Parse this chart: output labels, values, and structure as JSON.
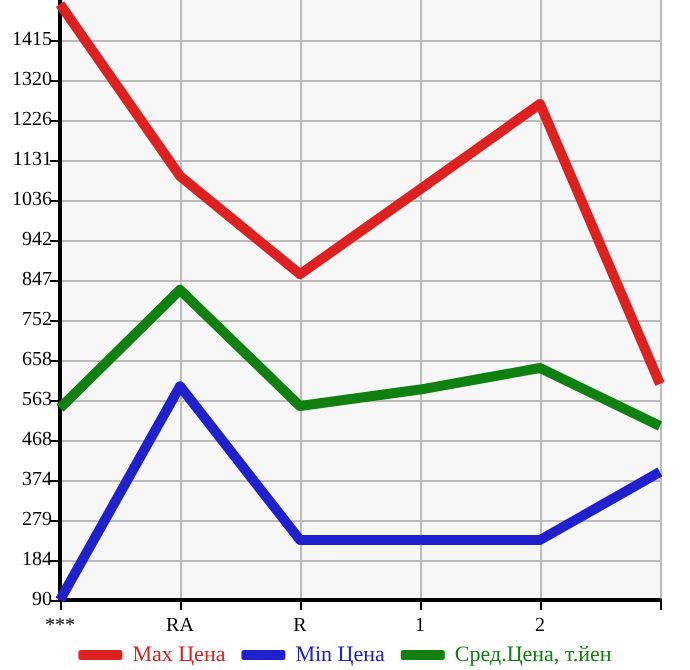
{
  "chart_data": {
    "type": "line",
    "categories": [
      "***",
      "RA",
      "R",
      "1",
      "2",
      null
    ],
    "series": [
      {
        "name": "Max Цена",
        "color": "#dd2020",
        "values": [
          1500,
          1093,
          861,
          1062,
          1264,
          601
        ]
      },
      {
        "name": "Min Цена",
        "color": "#2020cc",
        "values": [
          90,
          596,
          232,
          232,
          232,
          393
        ]
      },
      {
        "name": "Сред.Цена, т.йен",
        "color": "#108010",
        "values": [
          544,
          824,
          549,
          588,
          639,
          502
        ]
      }
    ],
    "ylim": [
      90,
      1510
    ],
    "yticks": [
      90,
      184,
      279,
      374,
      468,
      563,
      658,
      752,
      847,
      942,
      1036,
      1131,
      1226,
      1320,
      1415
    ],
    "grid": true,
    "legend": "bottom",
    "marker": "none",
    "line_style": "solid"
  }
}
